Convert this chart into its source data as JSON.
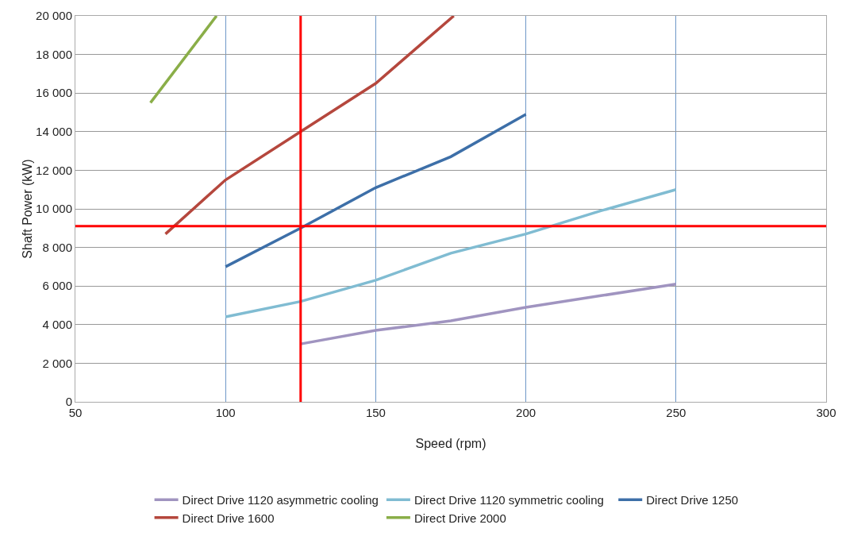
{
  "chart_data": {
    "type": "line",
    "xlabel": "Speed (rpm)",
    "ylabel": "Shaft Power (kW)",
    "xlim": [
      50,
      300
    ],
    "xticks": [
      50,
      100,
      150,
      200,
      250,
      300
    ],
    "ylim": [
      0,
      20000
    ],
    "yticks": [
      0,
      {
        "value": 2000,
        "label": "2 000"
      },
      {
        "value": 4000,
        "label": "4 000"
      },
      {
        "value": 6000,
        "label": "6 000"
      },
      {
        "value": 8000,
        "label": "8 000"
      },
      {
        "value": 10000,
        "label": "10 000"
      },
      {
        "value": 12000,
        "label": "12 000"
      },
      {
        "value": 14000,
        "label": "14 000"
      },
      {
        "value": 16000,
        "label": "16 000"
      },
      {
        "value": 18000,
        "label": "18 000"
      },
      {
        "value": 20000,
        "label": "20 000"
      }
    ],
    "grid": true,
    "legend": "bottom",
    "marker": "none",
    "line_style": "solid",
    "series": [
      {
        "name": "Direct Drive 1120 asymmetric cooling",
        "color": "#a094c0",
        "x": [
          125,
          150,
          175,
          200,
          225,
          250
        ],
        "values": [
          3000,
          3700,
          4200,
          4900,
          5500,
          6100
        ]
      },
      {
        "name": "Direct Drive 1120 symmetric cooling",
        "color": "#80bcd2",
        "x": [
          100,
          125,
          150,
          175,
          200,
          225,
          250
        ],
        "values": [
          4400,
          5200,
          6300,
          7700,
          8700,
          9900,
          11000
        ]
      },
      {
        "name": "Direct Drive 1250",
        "color": "#3d6fa8",
        "x": [
          100,
          125,
          150,
          175,
          200
        ],
        "values": [
          7000,
          9000,
          11100,
          12700,
          14900
        ]
      },
      {
        "name": "Direct Drive 1600",
        "color": "#b5473d",
        "x": [
          80,
          100,
          125,
          150,
          176
        ],
        "values": [
          8700,
          11500,
          14000,
          16500,
          20000
        ]
      },
      {
        "name": "Direct Drive 2000",
        "color": "#8aae48",
        "x": [
          75,
          97
        ],
        "values": [
          15500,
          20000
        ]
      }
    ],
    "ref_lines": [
      {
        "axis": "x",
        "value": 125,
        "color": "#ff0000"
      },
      {
        "axis": "y",
        "value": 9100,
        "color": "#ff0000"
      }
    ]
  }
}
